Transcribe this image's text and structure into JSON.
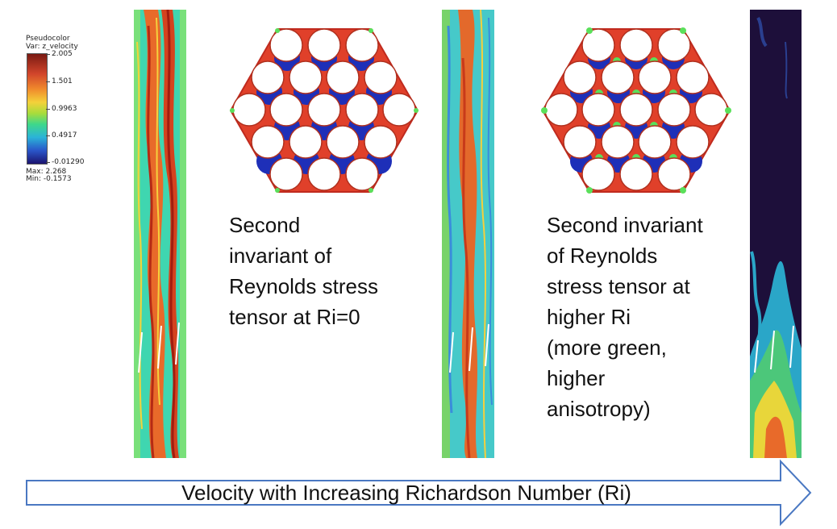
{
  "legend": {
    "title": "Pseudocolor",
    "variable": "Var: z_velocity",
    "ticks": [
      "2.005",
      "1.501",
      "0.9963",
      "0.4917",
      "-0.01290"
    ],
    "max": "Max: 2.268",
    "min": "Min: -0.1573"
  },
  "captions": {
    "ri0": [
      "Second",
      "invariant of",
      "Reynolds stress",
      "tensor at Ri=0"
    ],
    "higher_ri": [
      "Second invariant",
      "of Reynolds",
      "stress tensor at",
      "higher Ri",
      "(more green,",
      "higher",
      "anisotropy)"
    ]
  },
  "arrow": {
    "label": "Velocity with Increasing Richardson Number (Ri)",
    "outline_color": "#4a78c2"
  },
  "colors": {
    "rod_bundle_red": "#e0402a",
    "rod_bundle_blue": "#1e2fb8",
    "rod_bundle_green": "#5ae05a",
    "background_dark": "#1d0f3a"
  }
}
